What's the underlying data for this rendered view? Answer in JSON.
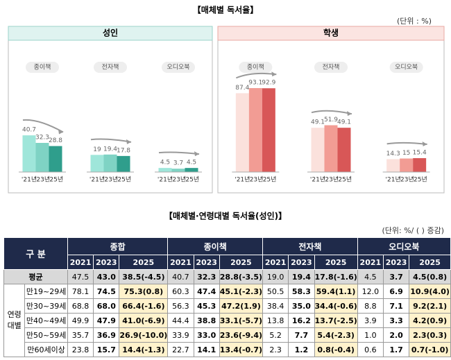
{
  "title": "【매체별 독서율】",
  "unit": "(단위 : %)",
  "panels": [
    {
      "title": "성인",
      "groups": [
        {
          "label": "종이책",
          "categories": [
            "'21년",
            "'23년",
            "'25년"
          ],
          "values": [
            40.7,
            32.3,
            28.8
          ],
          "colors": [
            "#9fe6da",
            "#7fd3c4",
            "#2f9e8c"
          ]
        },
        {
          "label": "전자책",
          "categories": [
            "'21년",
            "'23년",
            "'25년"
          ],
          "values": [
            19.0,
            19.4,
            17.8
          ],
          "colors": [
            "#9fe6da",
            "#7fd3c4",
            "#2f9e8c"
          ]
        },
        {
          "label": "오디오북",
          "categories": [
            "'21년",
            "'23년",
            "'25년"
          ],
          "values": [
            4.5,
            3.7,
            4.5
          ],
          "colors": [
            "#9fe6da",
            "#7fd3c4",
            "#2f9e8c"
          ]
        }
      ]
    },
    {
      "title": "학생",
      "groups": [
        {
          "label": "종이책",
          "categories": [
            "'21년",
            "'23년",
            "'25년"
          ],
          "values": [
            87.4,
            93.1,
            92.9
          ],
          "colors": [
            "#fbe1dc",
            "#f29c94",
            "#d85757"
          ]
        },
        {
          "label": "전자책",
          "categories": [
            "'21년",
            "'23년",
            "'25년"
          ],
          "values": [
            49.1,
            51.9,
            49.1
          ],
          "colors": [
            "#fbe1dc",
            "#f29c94",
            "#d85757"
          ]
        },
        {
          "label": "오디오북",
          "categories": [
            "'21년",
            "'23년",
            "'25년"
          ],
          "values": [
            14.3,
            15.0,
            15.4
          ],
          "colors": [
            "#fbe1dc",
            "#f29c94",
            "#d85757"
          ]
        }
      ]
    }
  ],
  "table": {
    "title": "【매체별·연령대별 독서율(성인)】",
    "unit": "(단위: %/ ( ) 증감)",
    "corner": "구   분",
    "groups": [
      "종합",
      "종이책",
      "전자책",
      "오디오북"
    ],
    "years": [
      "2021",
      "2023",
      "2025"
    ],
    "average": {
      "label": "평균",
      "cells": [
        "47.5",
        "43.0",
        "38.5(-4.5)",
        "40.7",
        "32.3",
        "28.8(-3.5)",
        "19.0",
        "19.4",
        "17.8(-1.6)",
        "4.5",
        "3.7",
        "4.5(0.8)"
      ]
    },
    "age_group": "연령 대별",
    "rows": [
      {
        "label": "만19~29세",
        "cells": [
          "78.1",
          "74.5",
          "75.3(0.8)",
          "60.3",
          "47.4",
          "45.1(-2.3)",
          "50.5",
          "58.3",
          "59.4(1.1)",
          "12.0",
          "6.9",
          "10.9(4.0)"
        ]
      },
      {
        "label": "만30~39세",
        "cells": [
          "68.8",
          "68.0",
          "66.4(-1.6)",
          "56.3",
          "45.3",
          "47.2(1.9)",
          "38.4",
          "35.0",
          "34.4(-0.6)",
          "8.8",
          "7.1",
          "9.2(2.1)"
        ]
      },
      {
        "label": "만40~49세",
        "cells": [
          "49.9",
          "47.9",
          "41.0(-6.9)",
          "44.4",
          "38.8",
          "33.1(-5.7)",
          "13.8",
          "16.2",
          "13.7(-2.5)",
          "3.9",
          "3.3",
          "4.2(0.9)"
        ]
      },
      {
        "label": "만50~59세",
        "cells": [
          "35.7",
          "36.9",
          "26.9(-10.0)",
          "33.9",
          "33.0",
          "23.6(-9.4)",
          "5.2",
          "7.7",
          "5.4(-2.3)",
          "1.0",
          "2.0",
          "2.3(0.3)"
        ]
      },
      {
        "label": "만60세이상",
        "cells": [
          "23.8",
          "15.7",
          "14.4(-1.3)",
          "22.7",
          "14.1",
          "13.4(-0.7)",
          "2.3",
          "1.2",
          "0.8(-0.4)",
          "0.6",
          "1.7",
          "0.7(-1.0)"
        ]
      }
    ]
  }
}
